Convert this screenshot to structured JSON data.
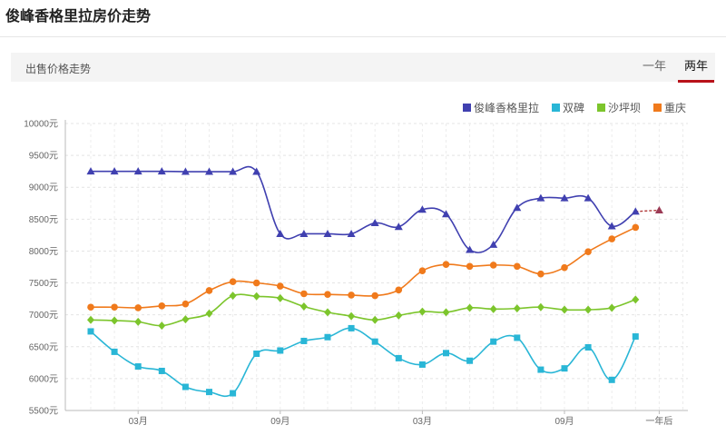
{
  "header": {
    "title": "俊峰香格里拉房价走势"
  },
  "toolbar": {
    "section_label": "出售价格走势",
    "tabs": [
      {
        "label": "一年"
      },
      {
        "label": "两年"
      }
    ]
  },
  "chart_data": {
    "type": "line",
    "title": "",
    "xlabel": "",
    "ylabel": "",
    "ylim": [
      5500,
      10000
    ],
    "y_ticks": [
      "5500元",
      "6000元",
      "6500元",
      "7000元",
      "7500元",
      "8000元",
      "8500元",
      "9000元",
      "9500元",
      "10000元"
    ],
    "x_tick_labels": [
      {
        "index": 2,
        "label": "03月"
      },
      {
        "index": 8,
        "label": "09月"
      },
      {
        "index": 14,
        "label": "03月"
      },
      {
        "index": 20,
        "label": "09月"
      },
      {
        "index": 24,
        "label": "一年后"
      }
    ],
    "legend_position": "top-right",
    "grid": true,
    "series": [
      {
        "name": "俊峰香格里拉",
        "color": "#4040b0",
        "marker": "triangle",
        "values": [
          9250,
          9250,
          9250,
          9250,
          9245,
          9245,
          9245,
          9245,
          8270,
          8270,
          8270,
          8270,
          8440,
          8380,
          8650,
          8580,
          8020,
          8100,
          8680,
          8830,
          8830,
          8830,
          8390,
          8620
        ],
        "forecast": [
          8620,
          8640
        ]
      },
      {
        "name": "双碑",
        "color": "#29b6d6",
        "marker": "square",
        "values": [
          6740,
          6420,
          6190,
          6120,
          5870,
          5790,
          5770,
          6390,
          6440,
          6590,
          6650,
          6790,
          6580,
          6320,
          6220,
          6400,
          6280,
          6580,
          6640,
          6140,
          6160,
          6490,
          5980,
          6660
        ]
      },
      {
        "name": "沙坪坝",
        "color": "#7cc52c",
        "marker": "diamond",
        "values": [
          6920,
          6910,
          6890,
          6830,
          6930,
          7020,
          7300,
          7290,
          7260,
          7130,
          7040,
          6980,
          6920,
          6990,
          7050,
          7040,
          7110,
          7090,
          7100,
          7120,
          7080,
          7080,
          7110,
          7240
        ]
      },
      {
        "name": "重庆",
        "color": "#f07a1c",
        "marker": "circle",
        "values": [
          7120,
          7120,
          7110,
          7140,
          7170,
          7380,
          7520,
          7500,
          7450,
          7330,
          7320,
          7310,
          7300,
          7390,
          7690,
          7790,
          7760,
          7780,
          7760,
          7640,
          7740,
          7990,
          8190,
          8370
        ]
      }
    ]
  }
}
